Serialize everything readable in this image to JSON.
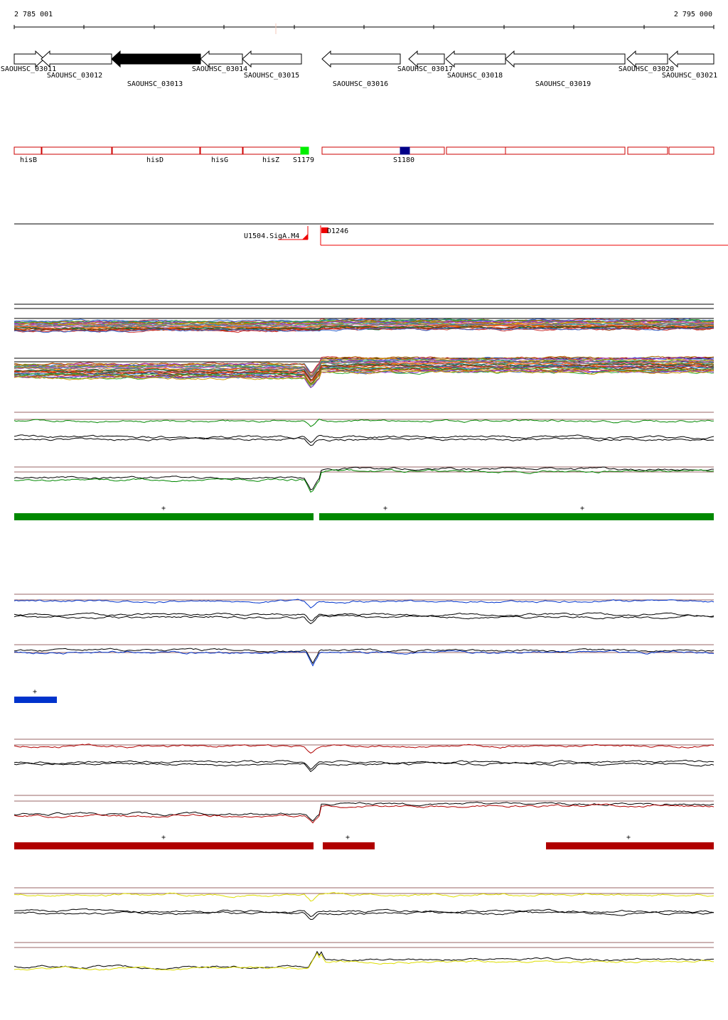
{
  "coordinates": {
    "start": "2 785 001",
    "end": "2 795 000"
  },
  "genes": [
    {
      "id": "SAOUHSC_03011",
      "label": "SAOUHSC_03011",
      "filled": false
    },
    {
      "id": "SAOUHSC_03012",
      "label": "SAOUHSC_03012",
      "filled": false
    },
    {
      "id": "SAOUHSC_03013",
      "label": "SAOUHSC_03013",
      "filled": true
    },
    {
      "id": "SAOUHSC_03014",
      "label": "SAOUHSC_03014",
      "filled": false
    },
    {
      "id": "SAOUHSC_03015",
      "label": "SAOUHSC_03015",
      "filled": false
    },
    {
      "id": "SAOUHSC_03016",
      "label": "SAOUHSC_03016",
      "filled": false
    },
    {
      "id": "SAOUHSC_03017",
      "label": "SAOUHSC_03017",
      "filled": false
    },
    {
      "id": "SAOUHSC_03018",
      "label": "SAOUHSC_03018",
      "filled": false
    },
    {
      "id": "SAOUHSC_03019",
      "label": "SAOUHSC_03019",
      "filled": false
    },
    {
      "id": "SAOUHSC_03020",
      "label": "SAOUHSC_03020",
      "filled": false
    },
    {
      "id": "SAOUHSC_03021",
      "label": "SAOUHSC_03021",
      "filled": false
    }
  ],
  "annotations": [
    {
      "label": "hisB"
    },
    {
      "label": ""
    },
    {
      "label": "hisD"
    },
    {
      "label": "hisG"
    },
    {
      "label": "hisZ"
    },
    {
      "label": "S1179"
    },
    {
      "label": ""
    },
    {
      "label": "S1180"
    },
    {
      "label": ""
    },
    {
      "label": ""
    },
    {
      "label": ""
    },
    {
      "label": ""
    }
  ],
  "features": {
    "promoter": "U1504.SigA.M4",
    "terminator": "D1246"
  },
  "colors": {
    "gene_outline": "#000000",
    "annotation_outline": "#cc0000",
    "s1179": "#00ee00",
    "s1180": "#000088",
    "feature_red": "#ee0000",
    "green": "#008800",
    "blue": "#0033cc",
    "red": "#b00000",
    "yellow": "#dddd00",
    "guide": "#996666"
  },
  "segments": {
    "green": [
      {
        "strand": "+"
      },
      {
        "strand": "+"
      },
      {
        "strand": "+"
      }
    ],
    "blue": [
      {
        "strand": "+"
      }
    ],
    "red": [
      {
        "strand": "+"
      },
      {
        "strand": "+"
      },
      {
        "strand": "+"
      }
    ]
  }
}
